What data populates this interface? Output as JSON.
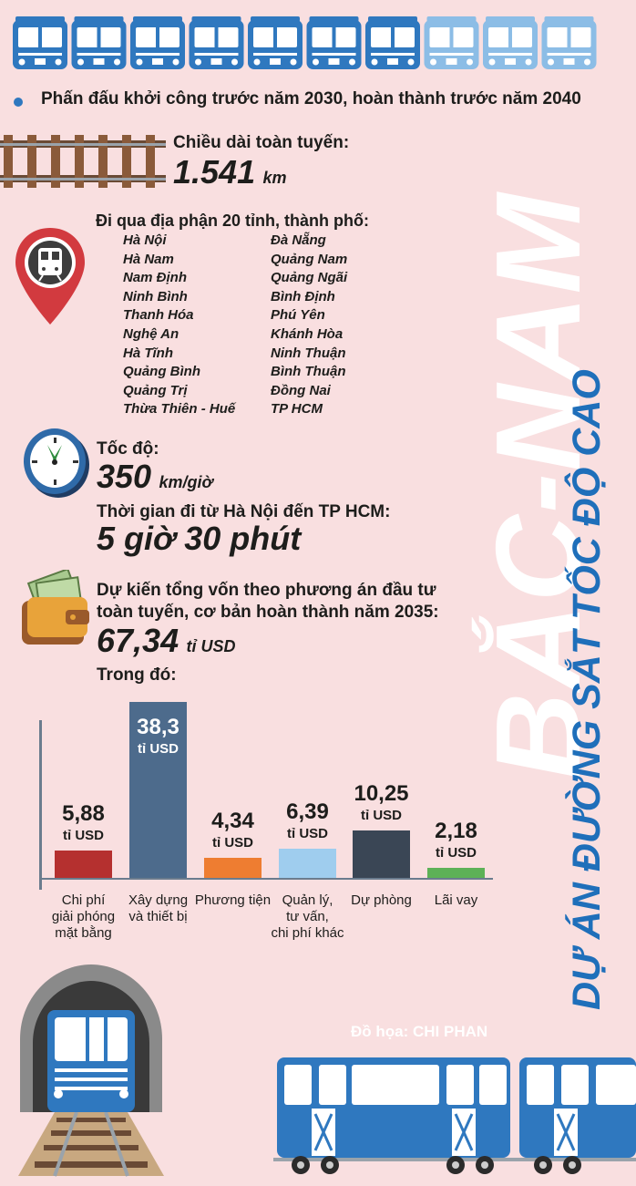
{
  "headline": {
    "title_big": "BẮC-NAM",
    "title_sub": "DỰ ÁN ĐƯỜNG SẮT TỐC ĐỘ CAO"
  },
  "intro": "Phấn đấu khởi công trước năm 2030, hoàn thành trước năm 2040",
  "length": {
    "label": "Chiều dài toàn tuyến:",
    "value": "1.541",
    "unit": "km"
  },
  "provinces": {
    "label": "Đi qua địa phận 20 tỉnh, thành phố:",
    "col1": [
      "Hà Nội",
      "Hà Nam",
      "Nam Định",
      "Ninh Bình",
      "Thanh Hóa",
      "Nghệ An",
      "Hà Tĩnh",
      "Quảng Bình",
      "Quảng Trị",
      "Thừa Thiên - Huế"
    ],
    "col2": [
      "Đà Nẵng",
      "Quảng Nam",
      "Quảng Ngãi",
      "Bình Định",
      "Phú Yên",
      "Khánh Hòa",
      "Ninh Thuận",
      "Bình Thuận",
      "Đồng Nai",
      "TP HCM"
    ]
  },
  "speed": {
    "label": "Tốc độ:",
    "value": "350",
    "unit": "km/giờ"
  },
  "travel_time": {
    "label": "Thời gian đi từ Hà Nội đến TP HCM:",
    "value": "5 giờ 30 phút"
  },
  "capital": {
    "label_line1": "Dự kiến tổng vốn theo phương án đầu tư",
    "label_line2": "toàn tuyến, cơ bản hoàn thành năm 2035:",
    "value": "67,34",
    "unit": "tỉ USD",
    "breakdown_label": "Trong đó:"
  },
  "chart_data": {
    "type": "bar",
    "unit": "tỉ USD",
    "categories": [
      "Chi phí giải phóng mặt bằng",
      "Xây dựng và thiết bị",
      "Phương tiện",
      "Quản lý, tư vấn, chi phí khác",
      "Dự phòng",
      "Lãi vay"
    ],
    "category_lines": [
      [
        "Chi phí",
        "giải phóng",
        "mặt bằng"
      ],
      [
        "Xây dựng",
        "và thiết bị"
      ],
      [
        "Phương tiện"
      ],
      [
        "Quản lý,",
        "tư vấn,",
        "chi phí khác"
      ],
      [
        "Dự phòng"
      ],
      [
        "Lãi vay"
      ]
    ],
    "values": [
      5.88,
      38.3,
      4.34,
      6.39,
      10.25,
      2.18
    ],
    "value_labels": [
      "5,88",
      "38,3",
      "4,34",
      "6,39",
      "10,25",
      "2,18"
    ],
    "colors": [
      "#b5302f",
      "#4d6b8c",
      "#ee7d31",
      "#9fcdee",
      "#3a4655",
      "#5db157"
    ],
    "label_inside": [
      false,
      true,
      false,
      false,
      false,
      false
    ]
  },
  "credit": "Đồ họa: CHI PHAN",
  "palette": {
    "blue": "#2f78bf",
    "light_blue": "#8cbde6",
    "background": "#f9dfe0"
  }
}
